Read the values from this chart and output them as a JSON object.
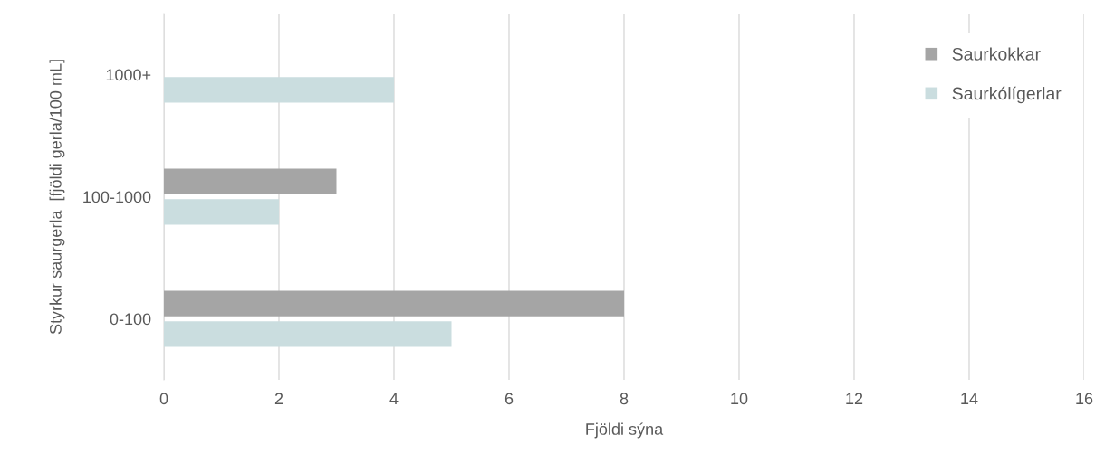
{
  "chart_data": {
    "type": "bar",
    "orientation": "horizontal",
    "xlabel": "Fjöldi sýna",
    "ylabel": "Styrkur saurgerla  [fjöldi gerla/100 mL]",
    "categories": [
      "1000+",
      "100-1000",
      "0-100"
    ],
    "series": [
      {
        "name": "Saurkokkar",
        "color": "#a5a5a5",
        "values": [
          null,
          3,
          8
        ]
      },
      {
        "name": "Saurkólígerlar",
        "color": "#cadddf",
        "values": [
          4,
          2,
          5
        ]
      }
    ],
    "xlim": [
      0,
      16
    ],
    "xticks": [
      0,
      2,
      4,
      6,
      8,
      10,
      12,
      14,
      16
    ],
    "grid": "x",
    "legend": "top right"
  }
}
